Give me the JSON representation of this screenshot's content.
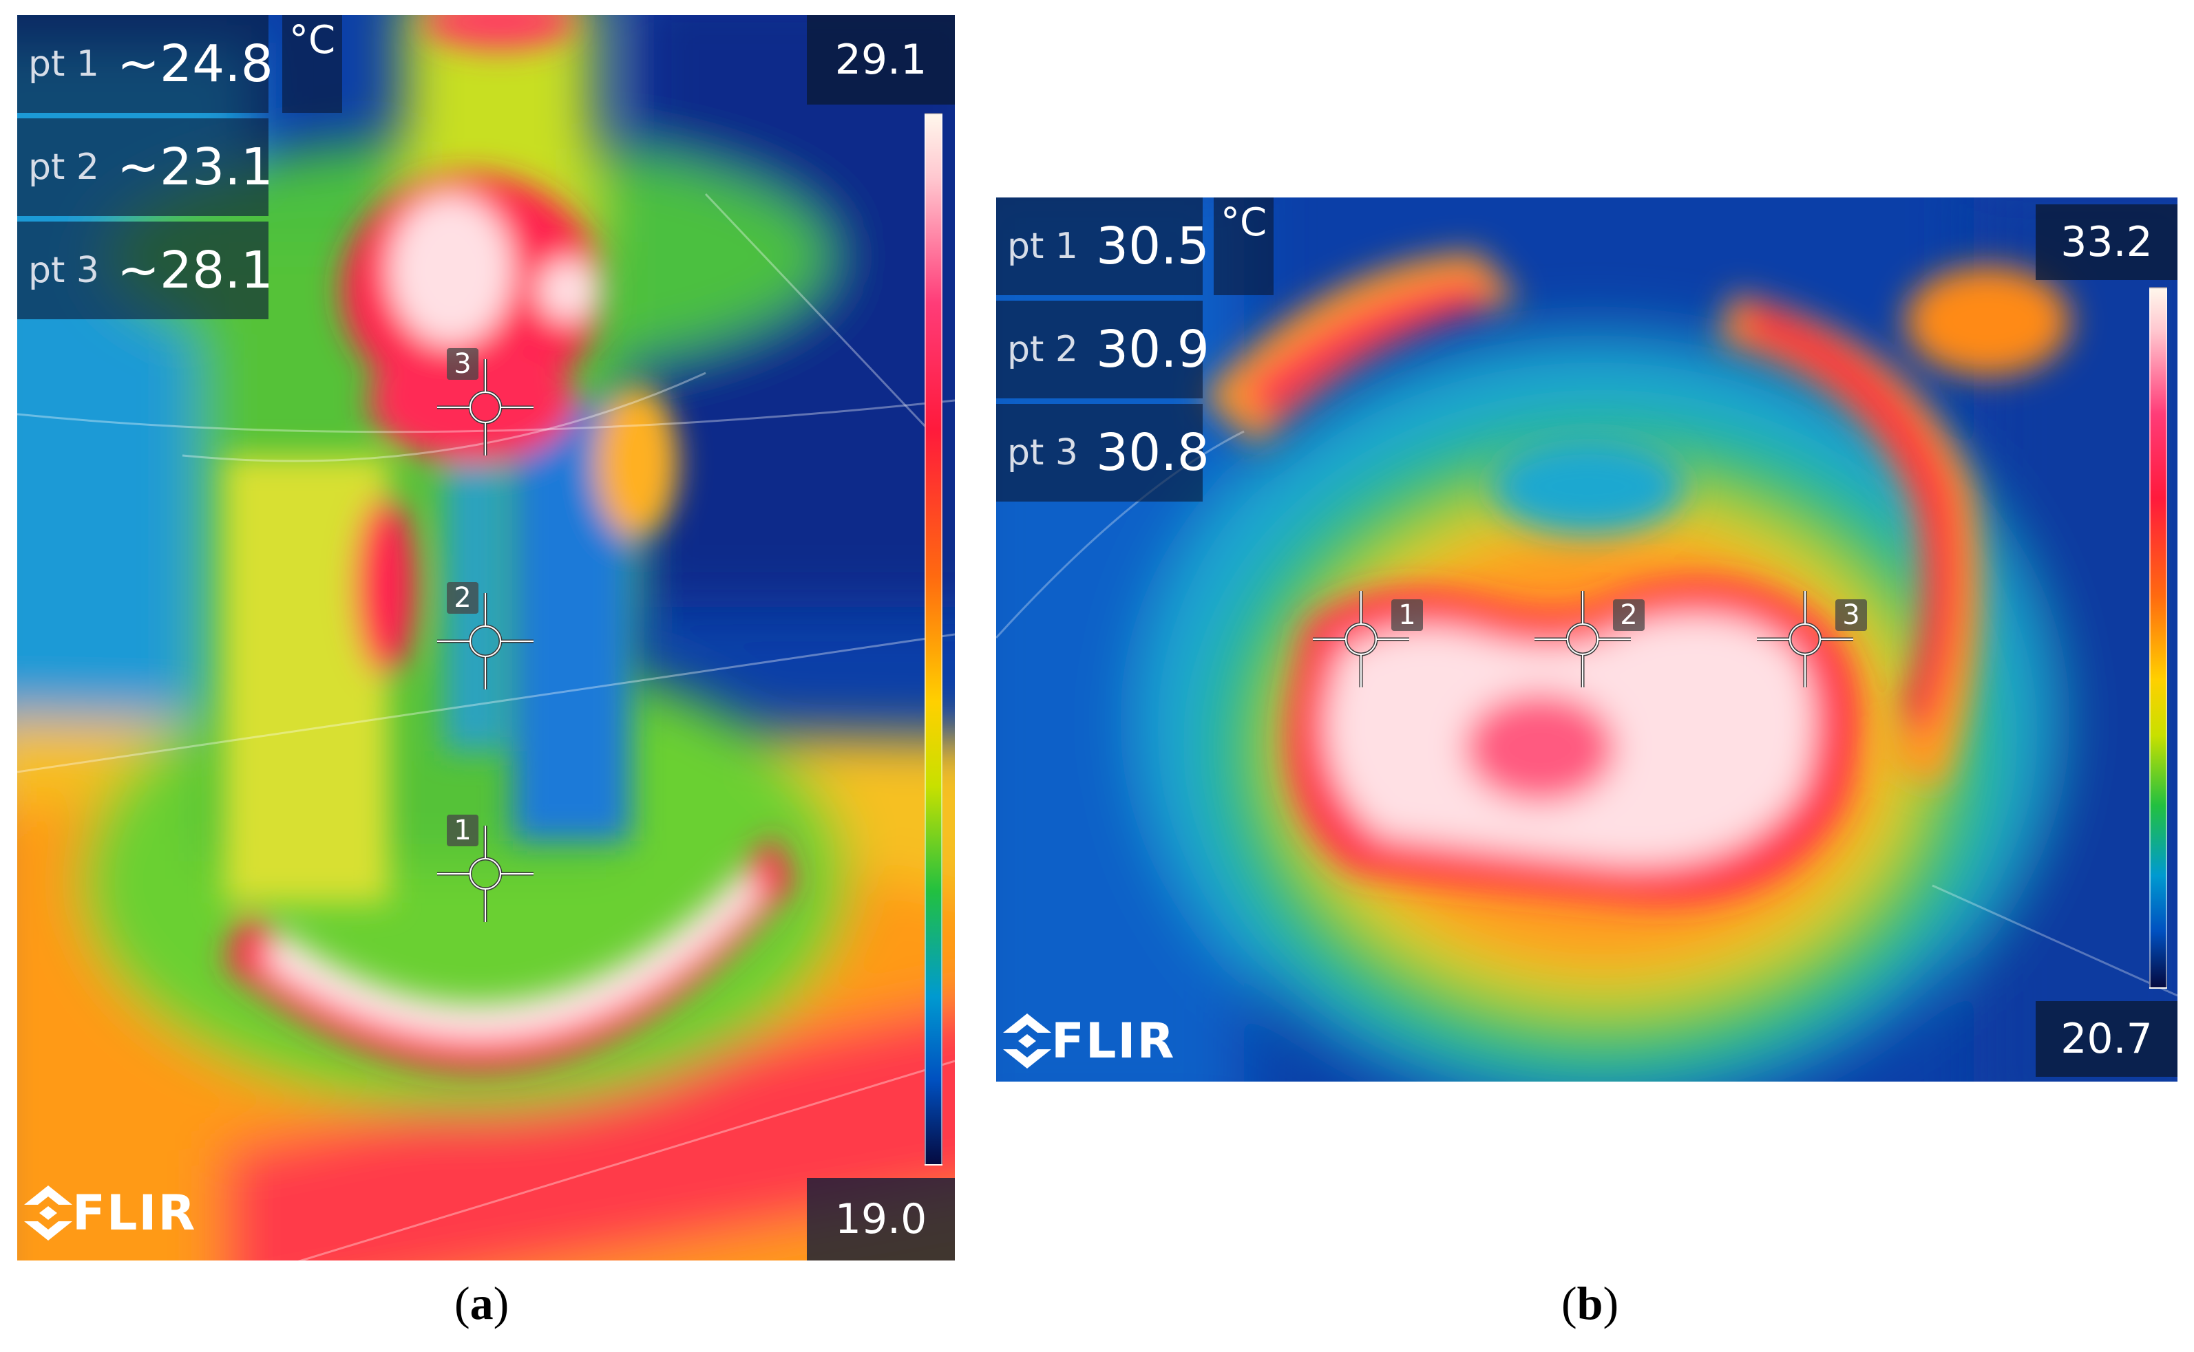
{
  "panel_a": {
    "points": [
      {
        "label": "pt 1",
        "value": "~24.8"
      },
      {
        "label": "pt 2",
        "value": "~23.1"
      },
      {
        "label": "pt 3",
        "value": "~28.1"
      }
    ],
    "unit": "°C",
    "scale_max": "29.1",
    "scale_min": "19.0",
    "logo": "FLIR",
    "cursor_tags": [
      "1",
      "2",
      "3"
    ],
    "caption_letter": "a"
  },
  "panel_b": {
    "points": [
      {
        "label": "pt 1",
        "value": "30.5"
      },
      {
        "label": "pt 2",
        "value": "30.9"
      },
      {
        "label": "pt 3",
        "value": "30.8"
      }
    ],
    "unit": "°C",
    "scale_max": "33.2",
    "scale_min": "20.7",
    "logo": "FLIR",
    "cursor_tags": [
      "1",
      "2",
      "3"
    ],
    "caption_letter": "b"
  },
  "icons": {
    "logo_mark": "flir-diamond-logo-icon",
    "spot_cursor": "crosshair-spot-icon"
  },
  "colors": {
    "overlay_bg": "#0a1937",
    "hot": "#ff1a3c",
    "warm": "#ffd000",
    "mid": "#22c040",
    "cool": "#009ad0",
    "cold": "#050a40"
  }
}
